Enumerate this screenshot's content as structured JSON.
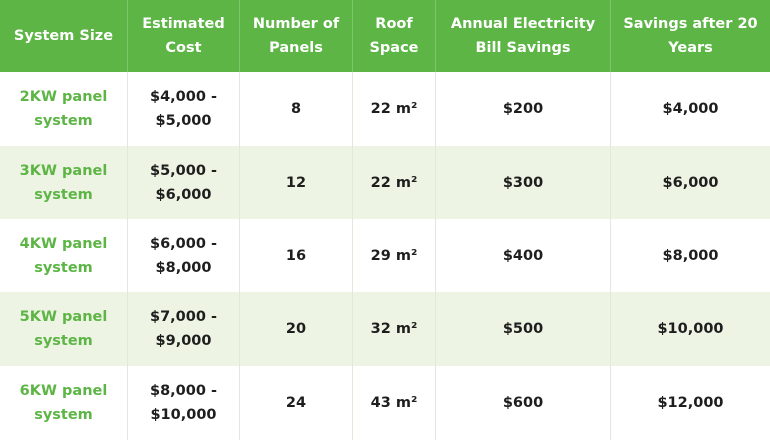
{
  "table": {
    "header": [
      "System Size",
      "Estimated Cost",
      "Number of Panels",
      "Roof Space",
      "Annual Electricity Bill Savings",
      "Savings after 20 Years"
    ],
    "rows": [
      [
        "2KW panel system",
        "$4,000 - $5,000",
        "8",
        "22 m²",
        "$200",
        "$4,000"
      ],
      [
        "3KW panel system",
        "$5,000 - $6,000",
        "12",
        "22 m²",
        "$300",
        "$6,000"
      ],
      [
        "4KW panel system",
        "$6,000 - $8,000",
        "16",
        "29 m²",
        "$400",
        "$8,000"
      ],
      [
        "5KW panel system",
        "$7,000 - $9,000",
        "20",
        "32 m²",
        "$500",
        "$10,000"
      ],
      [
        "6KW panel system",
        "$8,000 - $10,000",
        "24",
        "43 m²",
        "$600",
        "$12,000"
      ]
    ]
  }
}
